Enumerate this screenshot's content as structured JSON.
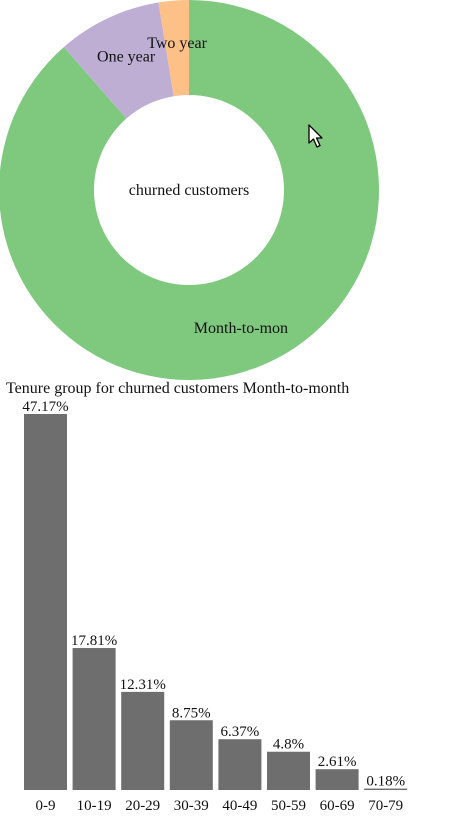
{
  "chart_data": [
    {
      "type": "pie",
      "title": "",
      "center_label": "churned customers",
      "legend": "none",
      "slices": [
        {
          "label": "Month-to-mon",
          "value": 88.55,
          "color": "#7fc97f"
        },
        {
          "label": "One year",
          "value": 8.88,
          "color": "#beaed4"
        },
        {
          "label": "Two year",
          "value": 2.57,
          "color": "#fdc086"
        }
      ],
      "hole_ratio": "donut"
    },
    {
      "type": "bar",
      "title": "Tenure group for churned customers Month-to-month",
      "categories": [
        "0-9",
        "10-19",
        "20-29",
        "30-39",
        "40-49",
        "50-59",
        "60-69",
        "70-79"
      ],
      "values": [
        47.17,
        17.81,
        12.31,
        8.75,
        6.37,
        4.8,
        2.61,
        0.18
      ],
      "value_labels": [
        "47.17%",
        "17.81%",
        "12.31%",
        "8.75%",
        "6.37%",
        "4.8%",
        "2.61%",
        "0.18%"
      ],
      "heights_note": "",
      "bar_color": "#6e6e6e",
      "ylim": [
        0,
        47.17
      ],
      "grid": false
    }
  ]
}
